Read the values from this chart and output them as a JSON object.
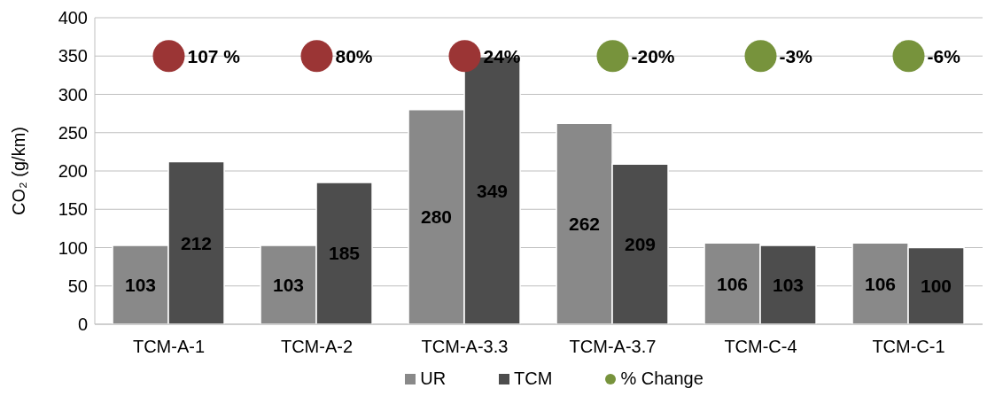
{
  "chart_data": {
    "type": "bar",
    "ylabel": "CO₂ (g/km)",
    "categories": [
      "TCM-A-1",
      "TCM-A-2",
      "TCM-A-3.3",
      "TCM-A-3.7",
      "TCM-C-4",
      "TCM-C-1"
    ],
    "series": [
      {
        "name": "UR",
        "color": "#898989",
        "values": [
          103,
          103,
          280,
          262,
          106,
          106
        ],
        "value_labels": [
          "103",
          "103",
          "280",
          "262",
          "106",
          "106"
        ]
      },
      {
        "name": "TCM",
        "color": "#4d4d4d",
        "values": [
          212,
          185,
          349,
          209,
          103,
          100
        ],
        "value_labels": [
          "212",
          "185",
          "349",
          "209",
          "103",
          "100"
        ]
      },
      {
        "name": "% Change",
        "type": "scatter",
        "color": "#77933c",
        "colors": [
          "#9b3535",
          "#9b3535",
          "#9b3535",
          "#77933c",
          "#77933c",
          "#77933c"
        ],
        "values": [
          350,
          350,
          350,
          350,
          350,
          350
        ]
      }
    ],
    "annotations": [
      {
        "text": "107 %",
        "x": "TCM-A-1",
        "y": 350
      },
      {
        "text": "80%",
        "x": "TCM-A-2",
        "y": 350
      },
      {
        "text": "24%",
        "x": "TCM-A-3.3",
        "y": 350
      },
      {
        "text": "-20%",
        "x": "TCM-A-3.7",
        "y": 350
      },
      {
        "text": "-3%",
        "x": "TCM-C-4",
        "y": 350
      },
      {
        "text": "-6%",
        "x": "TCM-C-1",
        "y": 350
      }
    ],
    "ylim": [
      0,
      400
    ],
    "yticks": [
      0,
      50,
      100,
      150,
      200,
      250,
      300,
      350,
      400
    ],
    "grid": "y",
    "legend": "bottom",
    "marker": "circle"
  }
}
